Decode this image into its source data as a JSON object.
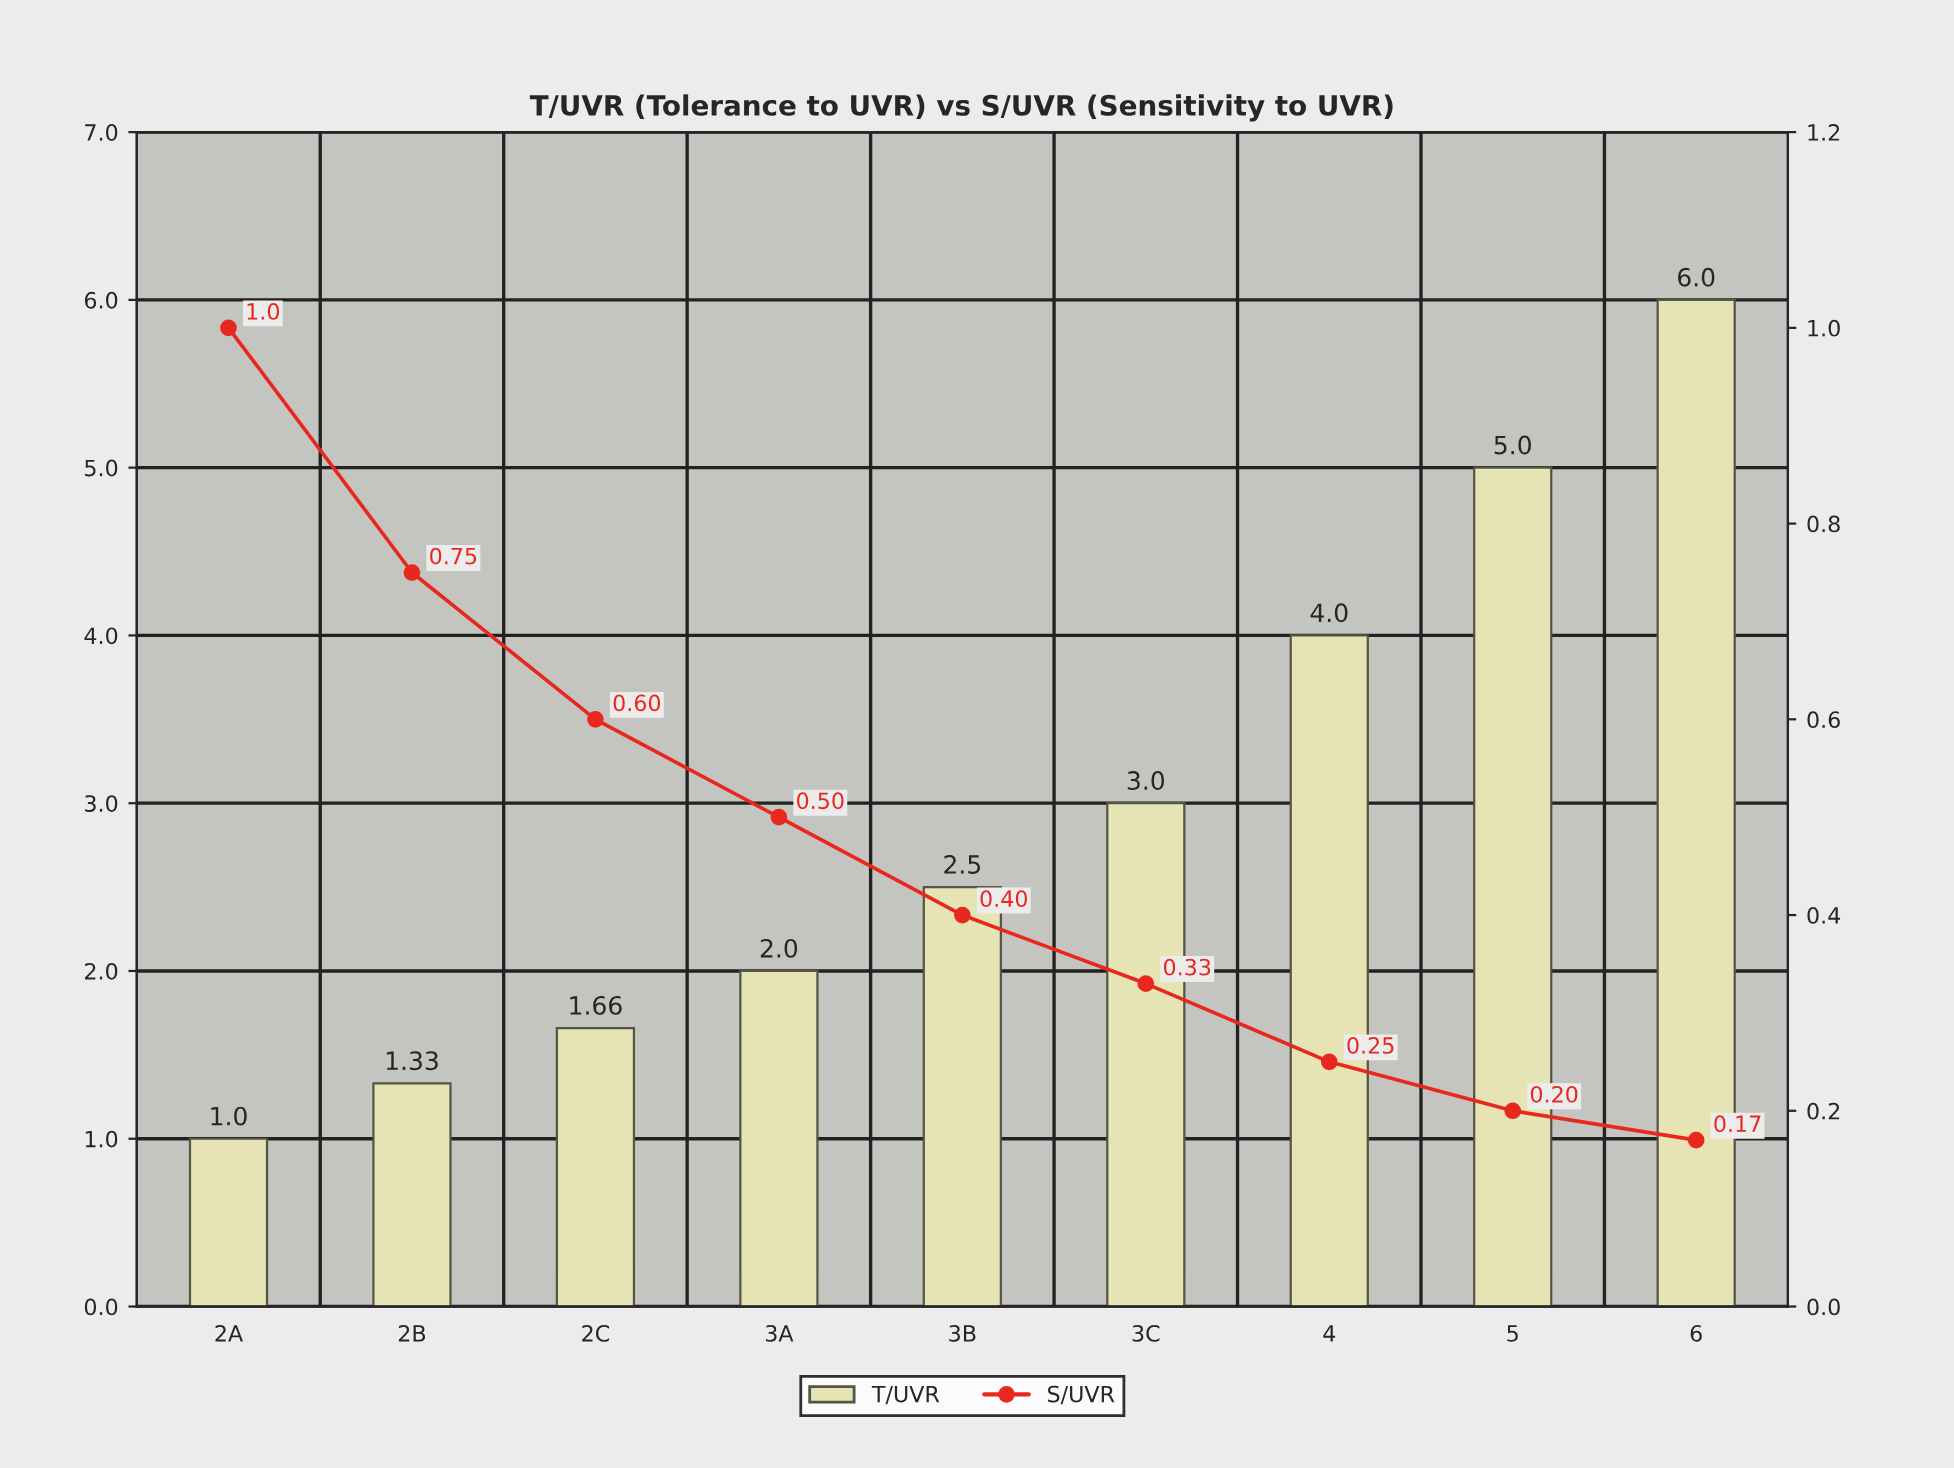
{
  "chart_data": {
    "type": "bar",
    "title": "T/UVR (Tolerance to UVR) vs S/UVR (Sensitivity to UVR)",
    "categories": [
      "2A",
      "2B",
      "2C",
      "3A",
      "3B",
      "3C",
      "4",
      "5",
      "6"
    ],
    "series": [
      {
        "name": "T/UVR",
        "color": "#e6e4b4",
        "values": [
          1.0,
          1.33,
          1.66,
          2.0,
          2.5,
          3.0,
          4.0,
          5.0,
          6.0
        ],
        "value_labels": [
          "1.0",
          "1.33",
          "1.66",
          "2.0",
          "2.5",
          "3.0",
          "4.0",
          "5.0",
          "6.0"
        ]
      },
      {
        "name": "S/UVR",
        "type": "line",
        "axis": "y2",
        "color": "#e8281e",
        "marker": "circle",
        "values": [
          1.0,
          0.75,
          0.6,
          0.5,
          0.4,
          0.33,
          0.25,
          0.2,
          0.17
        ],
        "value_labels": [
          "1.0",
          "0.75",
          "0.60",
          "0.50",
          "0.40",
          "0.33",
          "0.25",
          "0.20",
          "0.17"
        ]
      }
    ],
    "ylim": [
      0,
      7
    ],
    "yticks": [
      {
        "value": 0,
        "label": "0.0"
      },
      {
        "value": 1,
        "label": "1.0"
      },
      {
        "value": 2,
        "label": "2.0"
      },
      {
        "value": 3,
        "label": "3.0"
      },
      {
        "value": 4,
        "label": "4.0"
      },
      {
        "value": 5,
        "label": "5.0"
      },
      {
        "value": 6,
        "label": "6.0"
      },
      {
        "value": 7,
        "label": "7.0"
      }
    ],
    "y2lim": [
      0,
      1.2
    ],
    "y2ticks": [
      {
        "value": 0,
        "label": "0.0"
      },
      {
        "value": 0.2,
        "label": "0.2"
      },
      {
        "value": 0.4,
        "label": "0.4"
      },
      {
        "value": 0.6,
        "label": "0.6"
      },
      {
        "value": 0.8,
        "label": "0.8"
      },
      {
        "value": 1.0,
        "label": "1.0"
      },
      {
        "value": 1.2,
        "label": "1.2"
      }
    ],
    "grid": true,
    "legend": "bottom"
  }
}
